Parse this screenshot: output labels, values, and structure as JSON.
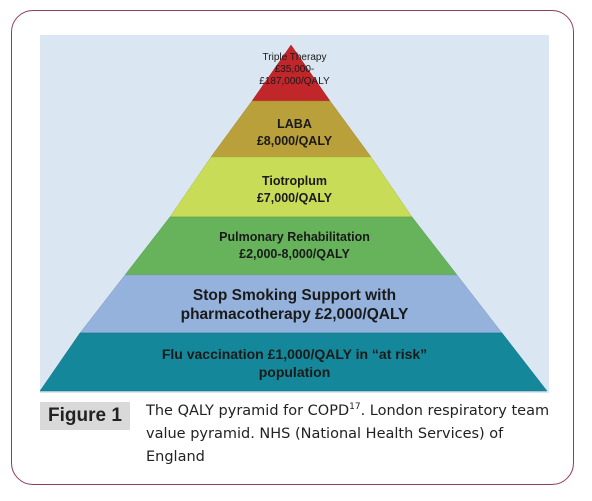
{
  "figure": {
    "label": "Figure 1",
    "caption_part1": "The QALY pyramid for COPD",
    "caption_ref": "17",
    "caption_part2": ". London respiratory team value pyramid. NHS (National Health Services) of England"
  },
  "pyramid": {
    "tiers": [
      {
        "lines": [
          "Triple Therapy",
          "£35,000-",
          "£187,000/QALY"
        ],
        "color": "#c0262a"
      },
      {
        "lines": [
          "LABA",
          "£8,000/QALY"
        ],
        "color": "#b9a03a"
      },
      {
        "lines": [
          "Tiotroplum",
          "£7,000/QALY"
        ],
        "color": "#c9dc57"
      },
      {
        "lines": [
          "Pulmonary Rehabilitation",
          "£2,000-8,000/QALY"
        ],
        "color": "#66b35c"
      },
      {
        "lines": [
          "Stop Smoking Support with",
          "pharmacotherapy £2,000/QALY"
        ],
        "color": "#94b2dc"
      },
      {
        "lines": [
          "Flu vaccination £1,000/QALY in “at risk”",
          "population"
        ],
        "color": "#14889a"
      }
    ]
  },
  "colors": {
    "frame_border": "#8e3b63",
    "diagram_background": "#dbe6f3",
    "label_background": "#d9d9d9"
  }
}
